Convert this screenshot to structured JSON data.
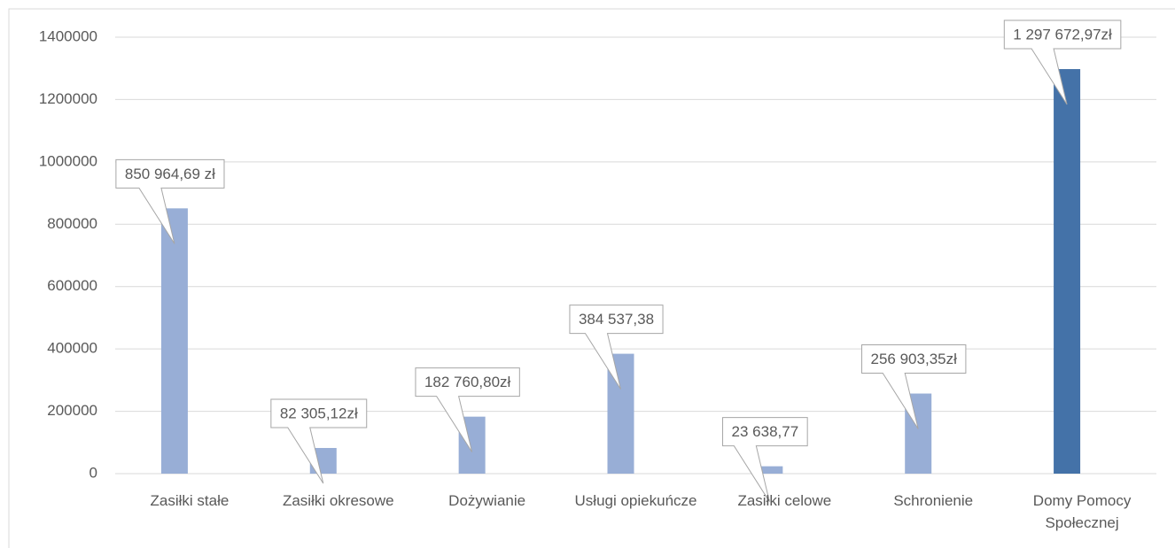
{
  "chart_data": {
    "type": "bar",
    "categories": [
      "Zasiłki stałe",
      "Zasiłki okresowe",
      "Dożywianie",
      "Usługi opiekuńcze",
      "Zasiłki celowe",
      "Schronienie",
      "Domy Pomocy Społecznej"
    ],
    "values": [
      850964.69,
      82305.12,
      182760.8,
      384537.38,
      23638.77,
      256903.35,
      1297672.97
    ],
    "value_labels": [
      "850 964,69 zł",
      "82 305,12zł",
      "182 760,80zł",
      "384 537,38",
      "23 638,77",
      "256 903,35zł",
      "1 297 672,97zł"
    ],
    "colors": [
      "#98aed6",
      "#98aed6",
      "#98aed6",
      "#98aed6",
      "#98aed6",
      "#98aed6",
      "#4472a8"
    ],
    "ylim": [
      0,
      1400000
    ],
    "yticks": [
      0,
      200000,
      400000,
      600000,
      800000,
      1000000,
      1200000,
      1400000
    ],
    "grid": true
  }
}
